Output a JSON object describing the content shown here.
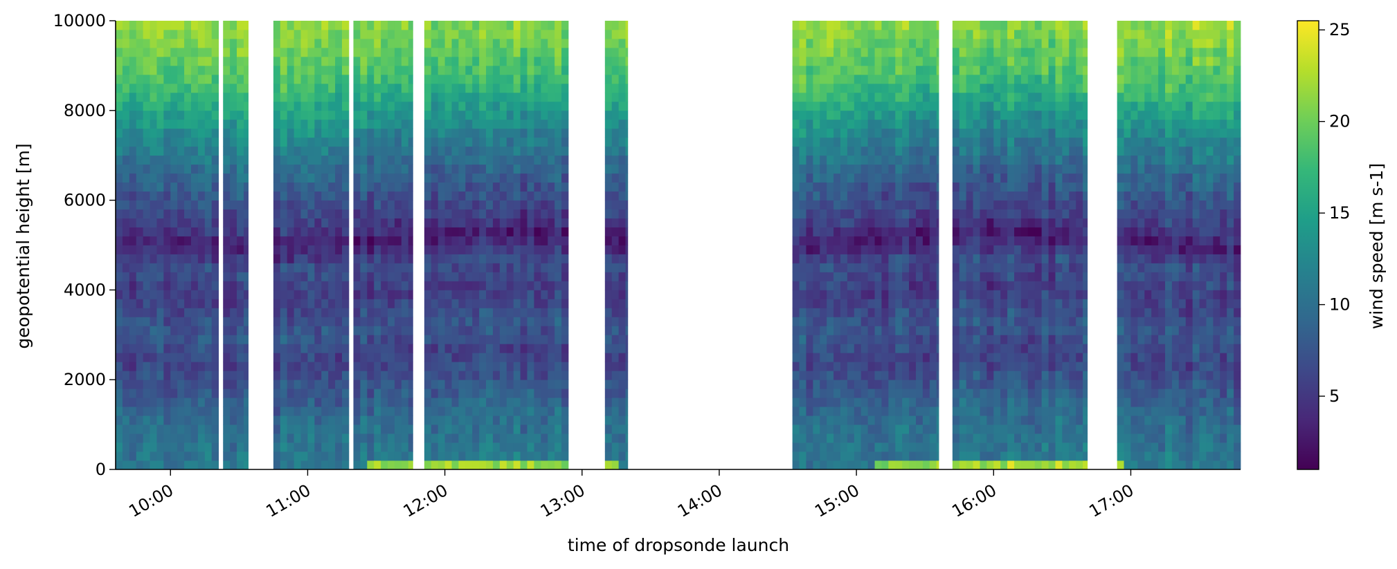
{
  "chart_data": {
    "type": "heatmap",
    "title": "",
    "xlabel": "time of dropsonde launch",
    "ylabel": "geopotential height [m]",
    "colorbar_label": "wind speed [m s-1]",
    "colormap": "viridis",
    "colorbar_colors": [
      "#440154",
      "#482878",
      "#3e4989",
      "#31688e",
      "#26828e",
      "#1f9e89",
      "#35b779",
      "#6ece58",
      "#b5de2b",
      "#fde725"
    ],
    "x_ticks": [
      "10:00",
      "11:00",
      "12:00",
      "13:00",
      "14:00",
      "15:00",
      "16:00",
      "17:00"
    ],
    "x_range": [
      "09:36",
      "17:48"
    ],
    "y_ticks": [
      0,
      2000,
      4000,
      6000,
      8000,
      10000
    ],
    "ylim": [
      0,
      10000
    ],
    "colorbar_ticks": [
      5,
      10,
      15,
      20,
      25
    ],
    "colorbar_range": [
      1,
      25.5
    ],
    "grid": false,
    "profile_height_step_m": 200,
    "launch_blocks": [
      {
        "start": "09:36",
        "end": "10:21"
      },
      {
        "start": "10:23",
        "end": "10:34"
      },
      {
        "start": "10:45",
        "end": "11:18"
      },
      {
        "start": "11:20",
        "end": "11:46"
      },
      {
        "start": "11:51",
        "end": "12:54"
      },
      {
        "start": "13:10",
        "end": "13:20"
      },
      {
        "start": "14:32",
        "end": "15:36"
      },
      {
        "start": "15:42",
        "end": "16:41"
      },
      {
        "start": "16:54",
        "end": "17:48"
      }
    ],
    "wind_profile_by_height": [
      {
        "height": 0,
        "speed": 11
      },
      {
        "height": 1000,
        "speed": 10
      },
      {
        "height": 2000,
        "speed": 7
      },
      {
        "height": 2400,
        "speed": 6
      },
      {
        "height": 3000,
        "speed": 8
      },
      {
        "height": 3800,
        "speed": 5.5
      },
      {
        "height": 4500,
        "speed": 7
      },
      {
        "height": 5000,
        "speed": 3
      },
      {
        "height": 5500,
        "speed": 6
      },
      {
        "height": 6500,
        "speed": 9
      },
      {
        "height": 7500,
        "speed": 13
      },
      {
        "height": 8500,
        "speed": 18
      },
      {
        "height": 10000,
        "speed": 22
      }
    ]
  }
}
